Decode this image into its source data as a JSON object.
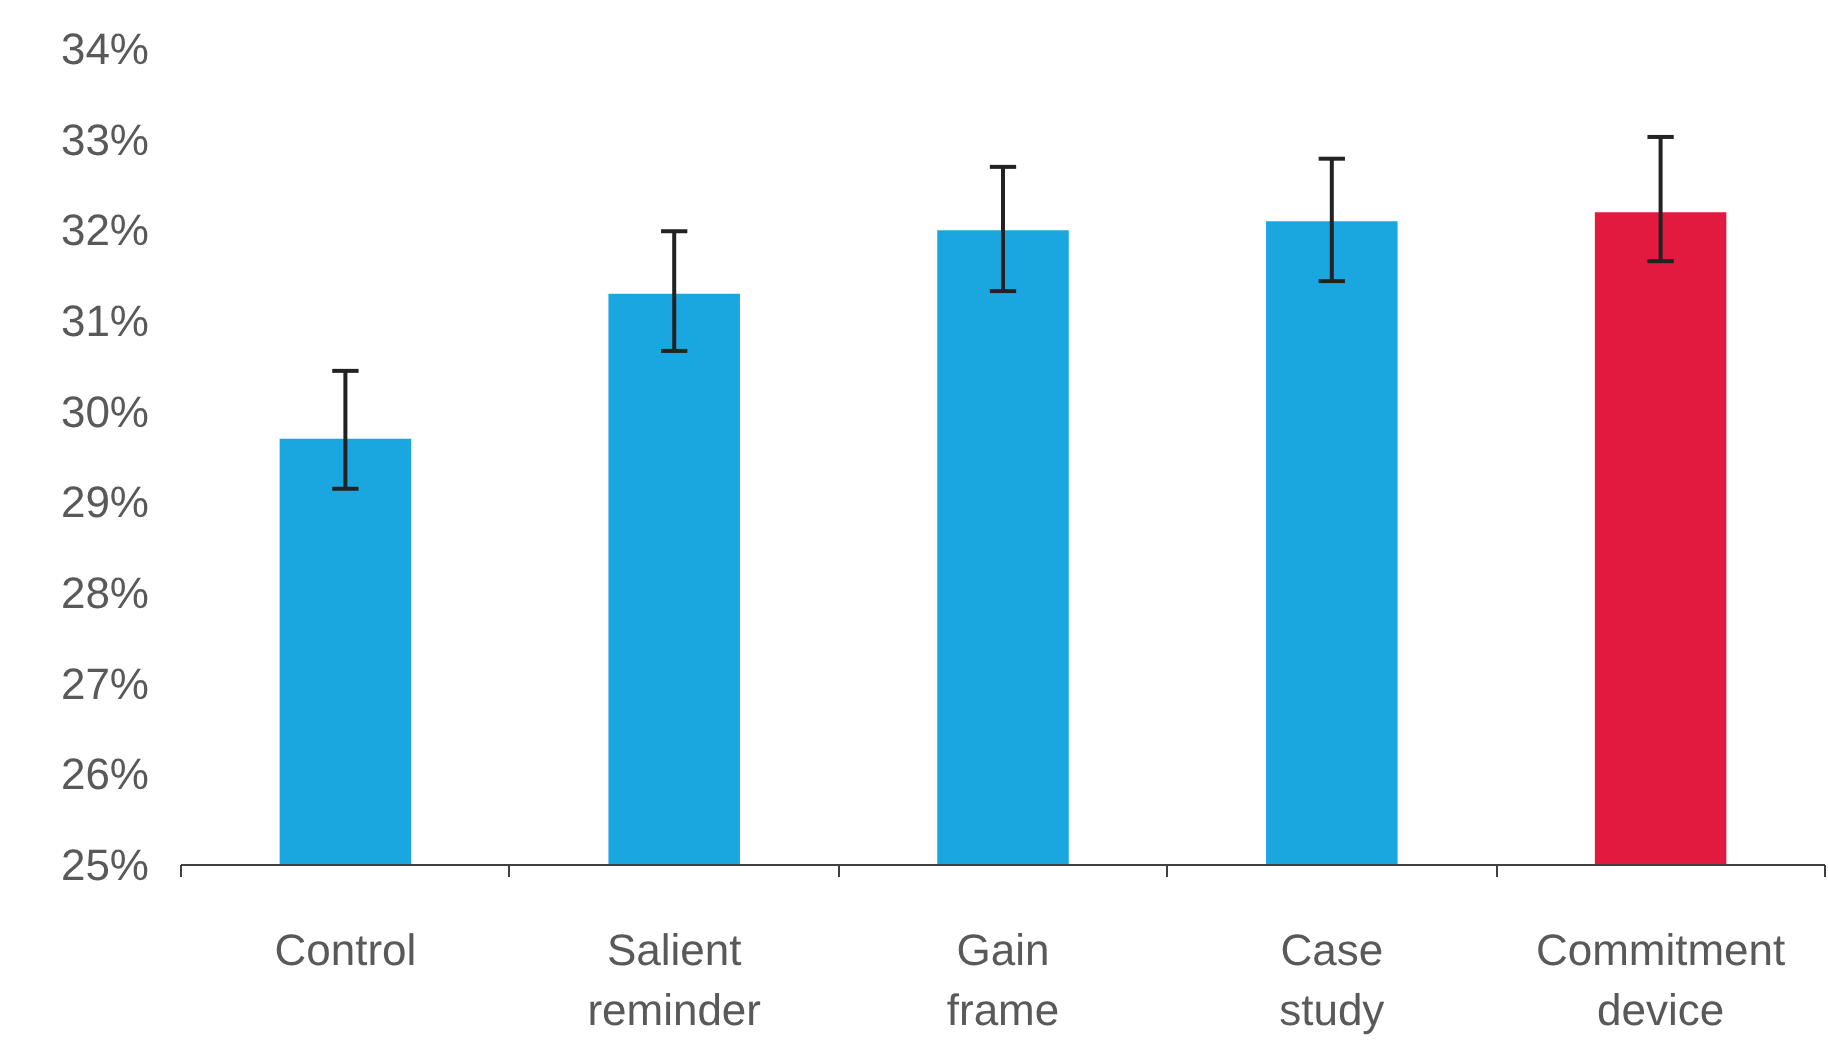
{
  "chart_data": {
    "type": "bar",
    "categories": [
      "Control",
      "Salient reminder",
      "Gain frame",
      "Case study",
      "Commitment device"
    ],
    "values": [
      29.7,
      31.3,
      32.0,
      32.1,
      32.2
    ],
    "colors": [
      "#1aa7e0",
      "#1aa7e0",
      "#1aa7e0",
      "#1aa7e0",
      "#e31a40"
    ],
    "errors": [
      [
        29.15,
        30.45
      ],
      [
        30.67,
        31.99
      ],
      [
        31.33,
        32.7
      ],
      [
        31.44,
        32.79
      ],
      [
        31.66,
        33.03
      ]
    ],
    "ylim": [
      25,
      34
    ],
    "yticks": [
      {
        "value": 25,
        "label": "25%"
      },
      {
        "value": 26,
        "label": "26%"
      },
      {
        "value": 27,
        "label": "27%"
      },
      {
        "value": 28,
        "label": "28%"
      },
      {
        "value": 29,
        "label": "29%"
      },
      {
        "value": 30,
        "label": "30%"
      },
      {
        "value": 31,
        "label": "31%"
      },
      {
        "value": 32,
        "label": "32%"
      },
      {
        "value": 33,
        "label": "33%"
      },
      {
        "value": 34,
        "label": "34%"
      }
    ],
    "grid": false
  }
}
